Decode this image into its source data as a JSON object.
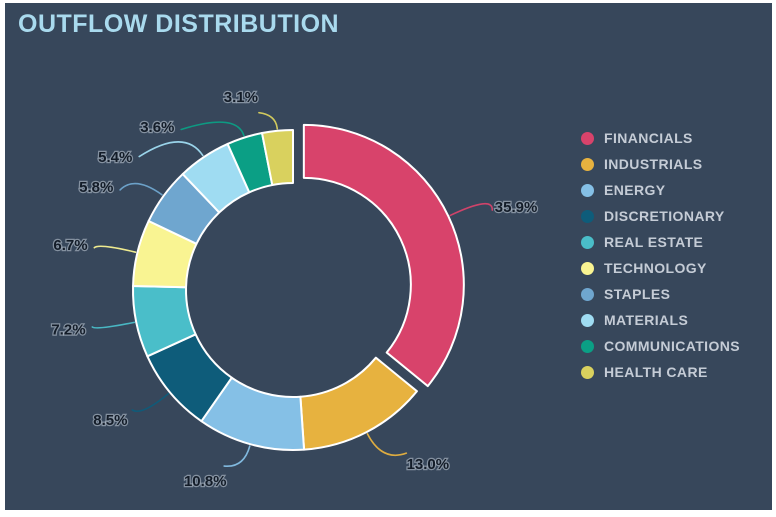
{
  "title": "OUTFLOW DISTRIBUTION",
  "colors": {
    "frame": "#ffffff",
    "background": "#37475b",
    "title_text": "#a9daee",
    "legend_text": "#c5ccd6",
    "percent_label_text": "#131c28",
    "slice_border": "#ffffff"
  },
  "chart_data": {
    "type": "pie",
    "subtype": "donut",
    "title": "OUTFLOW DISTRIBUTION",
    "legend_position": "right",
    "start_angle_deg": 0,
    "direction": "clockwise",
    "slices": [
      {
        "label": "FINANCIALS",
        "value": 35.9,
        "display": "35.9%",
        "color": "#d8436b",
        "exploded": true
      },
      {
        "label": "INDUSTRIALS",
        "value": 13.0,
        "display": "13.0%",
        "color": "#e7b23f",
        "exploded": false
      },
      {
        "label": "ENERGY",
        "value": 10.8,
        "display": "10.8%",
        "color": "#85c0e6",
        "exploded": false
      },
      {
        "label": "DISCRETIONARY",
        "value": 8.5,
        "display": "8.5%",
        "color": "#0e5c7a",
        "exploded": false
      },
      {
        "label": "REAL ESTATE",
        "value": 7.2,
        "display": "7.2%",
        "color": "#4abec9",
        "exploded": false
      },
      {
        "label": "TECHNOLOGY",
        "value": 6.7,
        "display": "6.7%",
        "color": "#f9f492",
        "exploded": false
      },
      {
        "label": "STAPLES",
        "value": 5.8,
        "display": "5.8%",
        "color": "#6fa6cf",
        "exploded": false
      },
      {
        "label": "MATERIALS",
        "value": 5.4,
        "display": "5.4%",
        "color": "#9fdcf2",
        "exploded": false
      },
      {
        "label": "COMMUNICATIONS",
        "value": 3.6,
        "display": "3.6%",
        "color": "#0b9f85",
        "exploded": false
      },
      {
        "label": "HEALTH CARE",
        "value": 3.1,
        "display": "3.1%",
        "color": "#d9d15e",
        "exploded": false
      }
    ]
  }
}
